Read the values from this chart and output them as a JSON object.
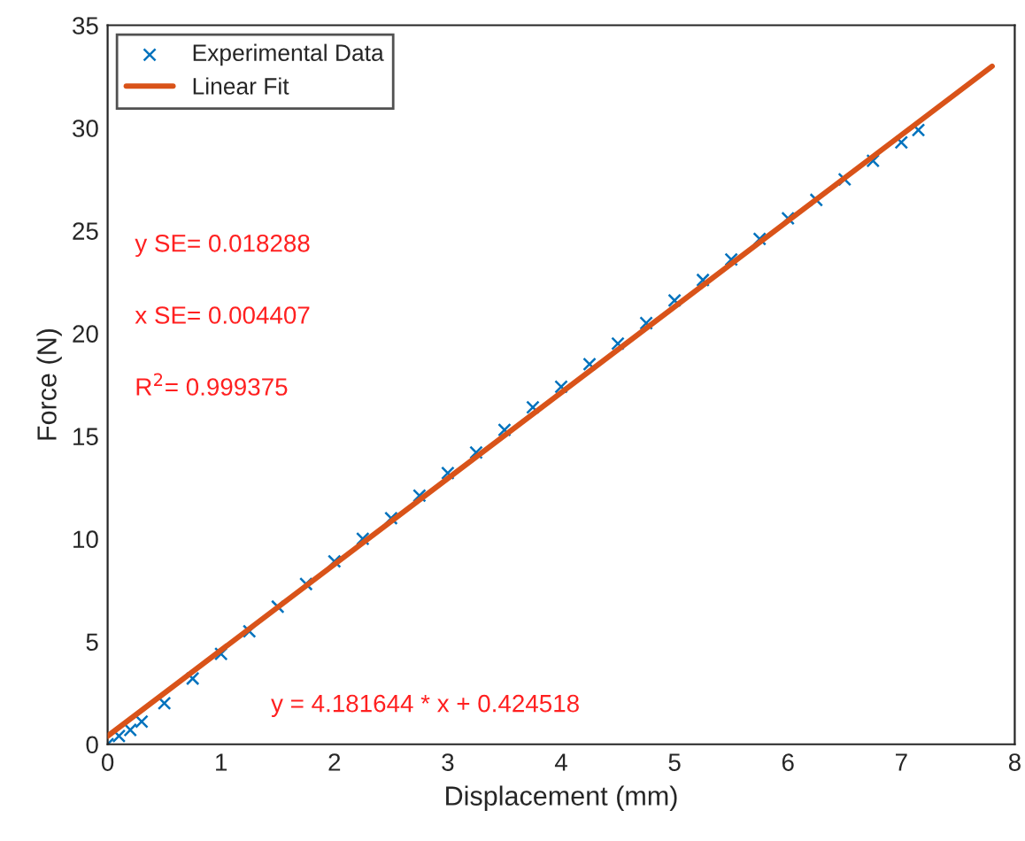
{
  "chart_data": {
    "type": "scatter",
    "xlabel": "Displacement (mm)",
    "ylabel": "Force (N)",
    "xlim": [
      0,
      8
    ],
    "ylim": [
      0,
      35
    ],
    "xticks": [
      0,
      1,
      2,
      3,
      4,
      5,
      6,
      7,
      8
    ],
    "yticks": [
      0,
      5,
      10,
      15,
      20,
      25,
      30,
      35
    ],
    "grid": false,
    "legend": "top left",
    "annotations": [
      "y SE= 0.018288",
      "x SE= 0.004407",
      "R$^{2}$= 0.999375",
      "y = 4.181644 * x + 0.424518"
    ],
    "series": [
      {
        "name": "Experimental Data",
        "marker": "cross",
        "color": "#0072bd",
        "x": [
          0,
          0.1,
          0.2,
          0.3,
          0.5,
          0.75,
          1.0,
          1.25,
          1.5,
          1.75,
          2.0,
          2.25,
          2.5,
          2.75,
          3.0,
          3.25,
          3.5,
          3.75,
          4.0,
          4.25,
          4.5,
          4.75,
          5.0,
          5.25,
          5.5,
          5.75,
          6.0,
          6.25,
          6.5,
          6.75,
          7.0,
          7.15
        ],
        "values": [
          0,
          0.4,
          0.7,
          1.1,
          2.0,
          3.2,
          4.4,
          5.5,
          6.7,
          7.8,
          8.9,
          10.0,
          11.0,
          12.1,
          13.2,
          14.2,
          15.3,
          16.4,
          17.4,
          18.5,
          19.5,
          20.5,
          21.6,
          22.6,
          23.6,
          24.6,
          25.6,
          26.5,
          27.5,
          28.4,
          29.3,
          29.9
        ]
      },
      {
        "name": "Linear Fit",
        "type": "line",
        "line_style": "solid",
        "color": "#d95319",
        "x": [
          0,
          7.8
        ],
        "values": [
          0.4,
          33.0
        ]
      }
    ]
  }
}
